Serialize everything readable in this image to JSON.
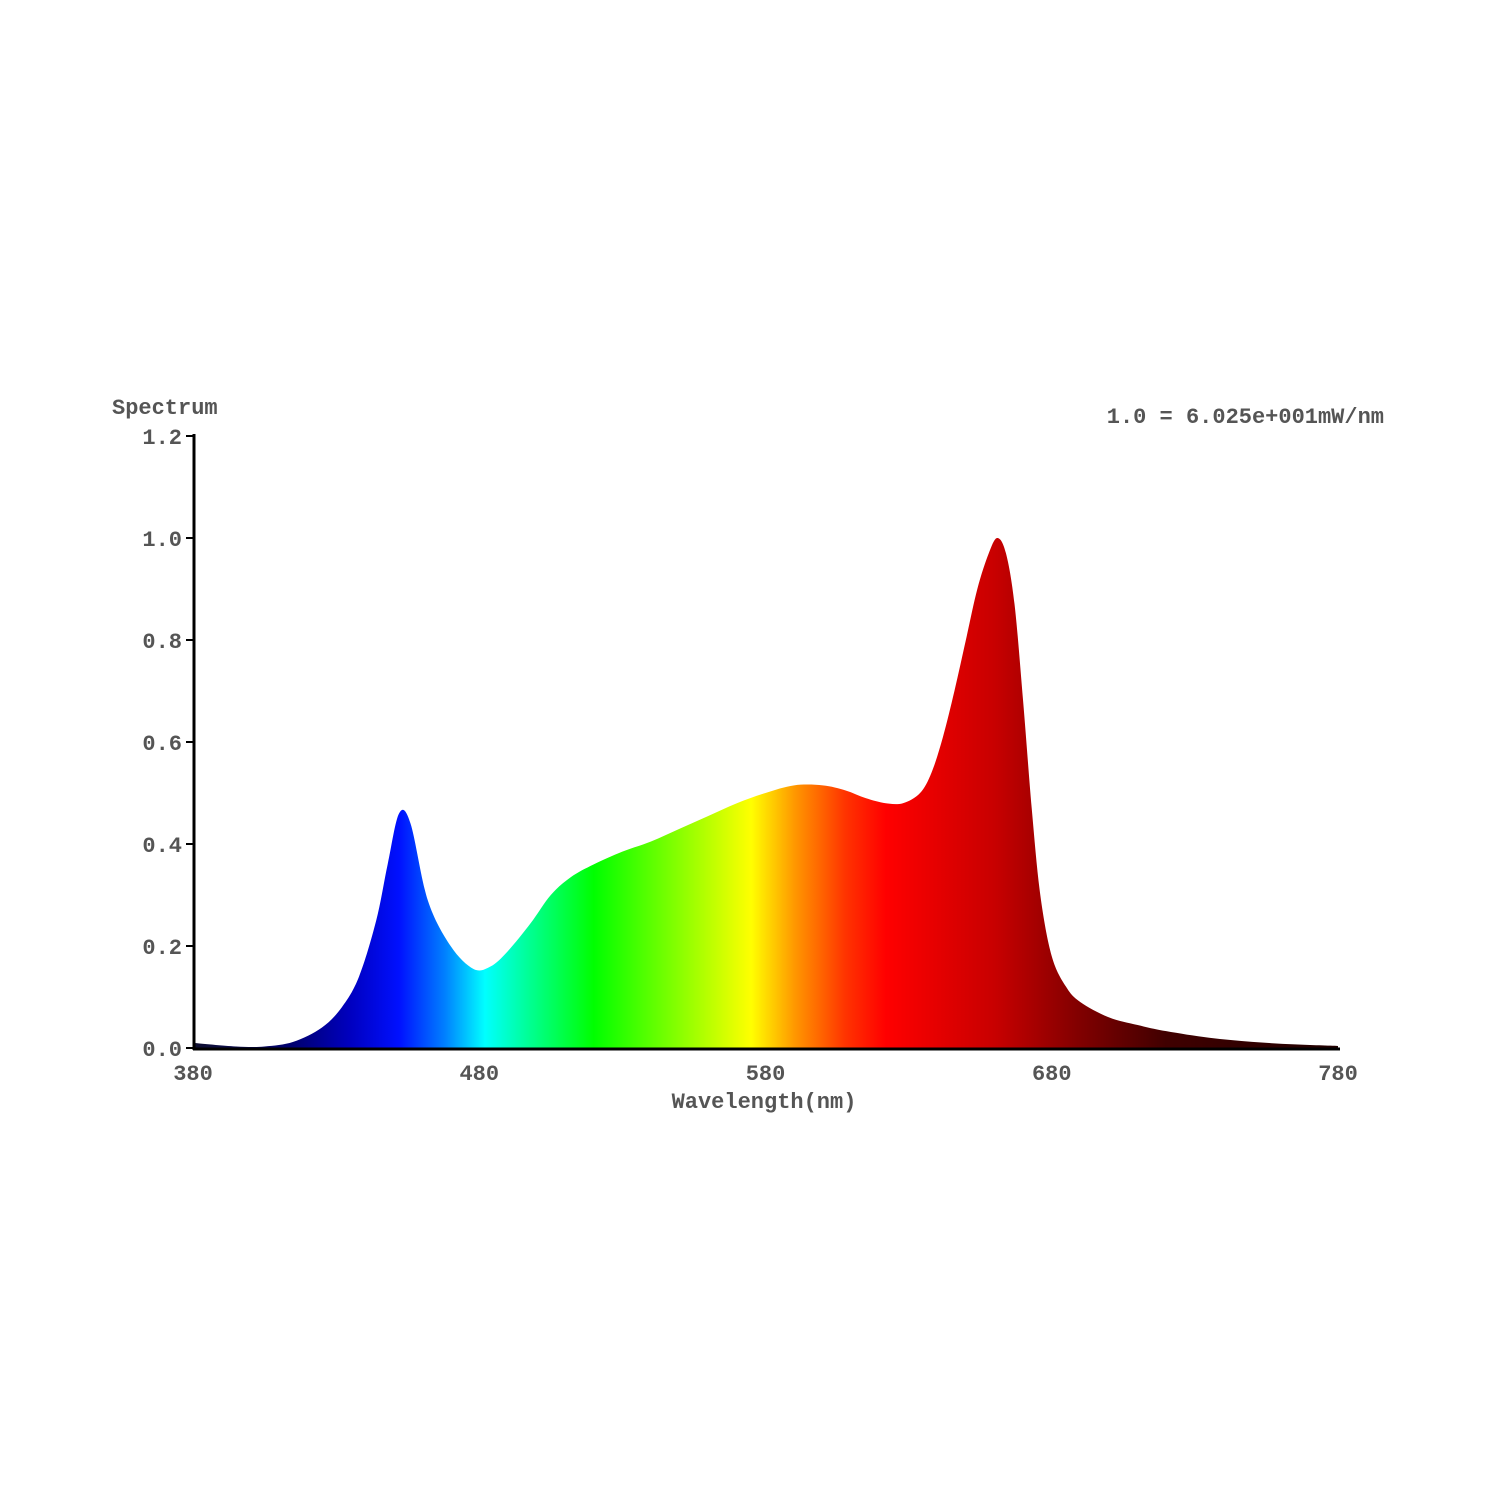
{
  "chart_data": {
    "type": "area",
    "title": "",
    "ylabel": "Spectrum",
    "xlabel": "Wavelength(nm)",
    "annotation": "1.0 = 6.025e+001mW/nm",
    "xlim": [
      380,
      780
    ],
    "ylim": [
      0,
      1.2
    ],
    "x_ticks": [
      "380",
      "480",
      "580",
      "680",
      "780"
    ],
    "x_tick_values": [
      380,
      480,
      580,
      680,
      780
    ],
    "y_ticks": [
      "0.0",
      "0.2",
      "0.4",
      "0.6",
      "0.8",
      "1.0",
      "1.2"
    ],
    "y_tick_values": [
      0,
      0.2,
      0.4,
      0.6,
      0.8,
      1.0,
      1.2
    ],
    "grid": false,
    "fill": "visible-spectrum gradient by wavelength",
    "x": [
      380,
      395,
      405,
      415,
      425,
      432,
      438,
      444,
      448,
      452,
      456,
      462,
      470,
      478,
      484,
      490,
      498,
      505,
      512,
      520,
      530,
      540,
      550,
      560,
      570,
      580,
      590,
      600,
      608,
      615,
      622,
      628,
      634,
      638,
      642,
      646,
      650,
      654,
      658,
      661,
      664,
      667,
      670,
      673,
      676,
      680,
      685,
      690,
      700,
      710,
      720,
      735,
      750,
      765,
      780
    ],
    "y": [
      0.01,
      0.003,
      0.003,
      0.012,
      0.04,
      0.08,
      0.14,
      0.25,
      0.36,
      0.46,
      0.44,
      0.29,
      0.2,
      0.155,
      0.16,
      0.19,
      0.245,
      0.3,
      0.335,
      0.36,
      0.385,
      0.405,
      0.43,
      0.455,
      0.48,
      0.5,
      0.515,
      0.515,
      0.505,
      0.49,
      0.48,
      0.48,
      0.5,
      0.54,
      0.61,
      0.7,
      0.8,
      0.9,
      0.97,
      1.0,
      0.97,
      0.87,
      0.68,
      0.47,
      0.3,
      0.18,
      0.12,
      0.09,
      0.06,
      0.045,
      0.033,
      0.02,
      0.012,
      0.007,
      0.004
    ],
    "colors": {
      "axis": "#000000",
      "text": "#555555"
    }
  }
}
